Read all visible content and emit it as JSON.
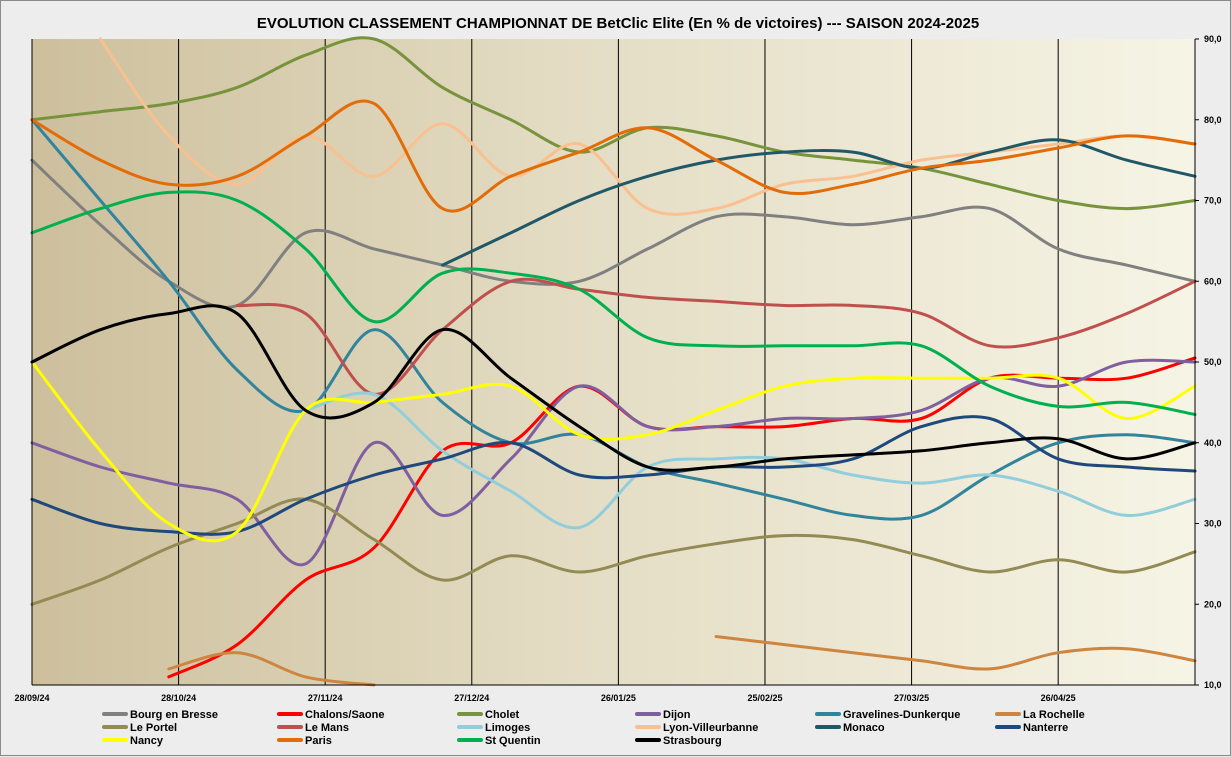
{
  "chart_data": {
    "type": "line",
    "title": "EVOLUTION  CLASSEMENT CHAMPIONNAT DE BetClic Elite (En % de victoires) --- SAISON 2024-2025",
    "xlabel": "",
    "ylabel": "",
    "x_ticks": [
      "28/09/24",
      "28/10/24",
      "27/11/24",
      "27/12/24",
      "26/01/25",
      "25/02/25",
      "27/03/25",
      "26/04/25"
    ],
    "x_domain": [
      "28/09/24",
      "24/05/25"
    ],
    "ylim": [
      10,
      90
    ],
    "y_ticks": [
      "10,0",
      "20,0",
      "30,0",
      "40,0",
      "50,0",
      "60,0",
      "70,0",
      "80,0",
      "90,0"
    ],
    "y_axis_position": "right",
    "grid": "vertical",
    "legend_position": "bottom",
    "x_points": [
      "28/09/24",
      "12/10/24",
      "26/10/24",
      "09/11/24",
      "23/11/24",
      "07/12/24",
      "21/12/24",
      "04/01/25",
      "18/01/25",
      "01/02/25",
      "15/02/25",
      "01/03/25",
      "15/03/25",
      "29/03/25",
      "12/04/25",
      "26/04/25",
      "10/05/25",
      "24/05/25"
    ],
    "series": [
      {
        "name": "Bourg en Bresse",
        "color": "#808080",
        "values": [
          75,
          67,
          60,
          57,
          66,
          64,
          62,
          60,
          60,
          64,
          68,
          68,
          67,
          68,
          69,
          64,
          62,
          60
        ]
      },
      {
        "name": "Chalons/Saone",
        "color": "#ff0000",
        "values": [
          null,
          null,
          11,
          15,
          23,
          27,
          39,
          40,
          47,
          42,
          42,
          42,
          43,
          43,
          48,
          48,
          48,
          50.5
        ]
      },
      {
        "name": "Cholet",
        "color": "#77933c",
        "values": [
          80,
          81,
          82,
          84,
          88,
          90,
          84,
          80,
          76,
          79,
          78,
          76,
          75,
          74,
          72,
          70,
          69,
          70
        ]
      },
      {
        "name": "Dijon",
        "color": "#7f5f9f",
        "values": [
          40,
          37,
          35,
          33,
          25,
          40,
          31,
          38,
          47,
          42,
          42,
          43,
          43,
          44,
          48,
          47,
          50,
          50
        ]
      },
      {
        "name": "Gravelines-Dunkerque",
        "color": "#31849b",
        "values": [
          80,
          70,
          60,
          49,
          44,
          54,
          45,
          40,
          41,
          37,
          35,
          33,
          31,
          31,
          36,
          40,
          41,
          40
        ]
      },
      {
        "name": "La Rochelle",
        "color": "#cd853f",
        "values": [
          null,
          null,
          12,
          14,
          11,
          10,
          null,
          null,
          null,
          null,
          16,
          15,
          14,
          13,
          12,
          14,
          14.5,
          13
        ]
      },
      {
        "name": "Le Portel",
        "color": "#948a54",
        "values": [
          20,
          23,
          27,
          30,
          33,
          28,
          23,
          26,
          24,
          26,
          27.5,
          28.5,
          28,
          26,
          24,
          25.5,
          24,
          26.5
        ]
      },
      {
        "name": "Le Mans",
        "color": "#c0504d",
        "values": [
          null,
          null,
          null,
          57,
          56,
          46,
          54,
          60,
          59,
          58,
          57.5,
          57,
          57,
          56,
          52,
          53,
          56,
          60
        ]
      },
      {
        "name": "Limoges",
        "color": "#92cddc",
        "values": [
          null,
          null,
          null,
          null,
          44,
          46,
          39,
          34,
          29.5,
          37,
          38,
          38,
          36,
          35,
          36,
          34,
          31,
          33
        ]
      },
      {
        "name": "Lyon-Villeurbanne",
        "color": "#fac090",
        "values": [
          null,
          90,
          78,
          72,
          78,
          73,
          79.5,
          73,
          77,
          69,
          69,
          72,
          73,
          75,
          76,
          77,
          78,
          77
        ]
      },
      {
        "name": "Monaco",
        "color": "#215868",
        "values": [
          null,
          null,
          null,
          null,
          null,
          null,
          62,
          66,
          70,
          73,
          75,
          76,
          76,
          74,
          76,
          77.5,
          75,
          73
        ]
      },
      {
        "name": "Nanterre",
        "color": "#1f497d",
        "values": [
          33,
          30,
          29,
          29,
          33,
          36,
          38,
          40,
          36,
          36,
          37,
          37,
          38,
          42,
          43,
          38,
          37,
          36.5
        ]
      },
      {
        "name": "Nancy",
        "color": "#ffff00",
        "values": [
          50,
          39,
          30,
          29,
          44,
          45,
          46,
          47,
          41,
          41,
          44,
          47,
          48,
          48,
          48,
          48,
          43,
          47
        ]
      },
      {
        "name": "Paris",
        "color": "#e36c09",
        "values": [
          80,
          75,
          72,
          73,
          78,
          82,
          69,
          73,
          76,
          79,
          75,
          71,
          72,
          74,
          75,
          76.5,
          78,
          77
        ]
      },
      {
        "name": "St Quentin",
        "color": "#00b050",
        "values": [
          66,
          69,
          71,
          70,
          64,
          55,
          61,
          61,
          59,
          53,
          52,
          52,
          52,
          52,
          47,
          44.5,
          45,
          43.5
        ]
      },
      {
        "name": "Strasbourg",
        "color": "#000000",
        "values": [
          50,
          54,
          56,
          56,
          44,
          45,
          54,
          48,
          42,
          37,
          37,
          38,
          38.5,
          39,
          40,
          40.5,
          38,
          40
        ]
      }
    ]
  }
}
